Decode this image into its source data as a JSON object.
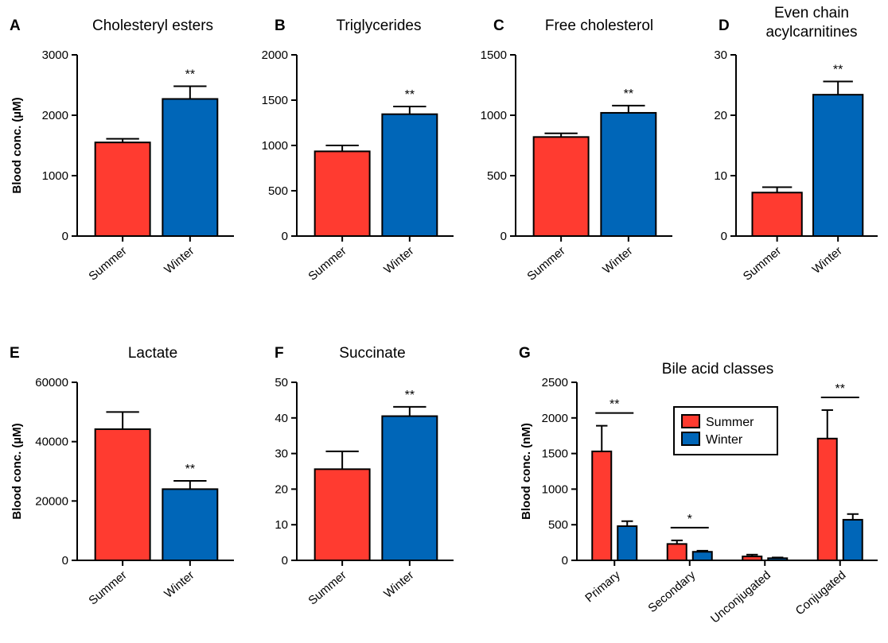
{
  "colors": {
    "summer": "#FF3B30",
    "winter": "#0066B8",
    "axis": "#000000"
  },
  "legend": {
    "items": [
      "Summer",
      "Winter"
    ],
    "placement": "top-center"
  },
  "chart_data": [
    {
      "type": "bar",
      "letter": "A",
      "title": "Cholesteryl esters",
      "ylabel": "Blood conc. (µM)",
      "categories": [
        "Summer",
        "Winter"
      ],
      "values": [
        1550,
        2270
      ],
      "errors": [
        60,
        210
      ],
      "ylim": [
        0,
        3000
      ],
      "yticks": [
        0,
        1000,
        2000,
        3000
      ],
      "ytick_labels": [
        "0",
        "1000",
        "2000",
        "3000"
      ],
      "significance": "**",
      "grid": false
    },
    {
      "type": "bar",
      "letter": "B",
      "title": "Triglycerides",
      "ylabel": "",
      "categories": [
        "Summer",
        "Winter"
      ],
      "values": [
        935,
        1345
      ],
      "errors": [
        65,
        85
      ],
      "ylim": [
        0,
        2000
      ],
      "yticks": [
        0,
        500,
        1000,
        1500,
        2000
      ],
      "ytick_labels": [
        "0",
        "500",
        "1000",
        "1500",
        "2000"
      ],
      "significance": "**",
      "grid": false
    },
    {
      "type": "bar",
      "letter": "C",
      "title": "Free cholesterol",
      "ylabel": "",
      "categories": [
        "Summer",
        "Winter"
      ],
      "values": [
        820,
        1020
      ],
      "errors": [
        30,
        60
      ],
      "ylim": [
        0,
        1500
      ],
      "yticks": [
        0,
        500,
        1000,
        1500
      ],
      "ytick_labels": [
        "0",
        "500",
        "1000",
        "1500"
      ],
      "significance": "**",
      "grid": false
    },
    {
      "type": "bar",
      "letter": "D",
      "title": "Even chain\nacylcarnitines",
      "ylabel": "",
      "categories": [
        "Summer",
        "Winter"
      ],
      "values": [
        7.2,
        23.4
      ],
      "errors": [
        0.9,
        2.2
      ],
      "ylim": [
        0,
        30
      ],
      "yticks": [
        0,
        10,
        20,
        30
      ],
      "ytick_labels": [
        "0",
        "10",
        "20",
        "30"
      ],
      "significance": "**",
      "grid": false
    },
    {
      "type": "bar",
      "letter": "E",
      "title": "Lactate",
      "ylabel": "Blood conc. (µM)",
      "categories": [
        "Summer",
        "Winter"
      ],
      "values": [
        44200,
        24000
      ],
      "errors": [
        5800,
        2800
      ],
      "ylim": [
        0,
        60000
      ],
      "yticks": [
        0,
        20000,
        40000,
        60000
      ],
      "ytick_labels": [
        "0",
        "20000",
        "40000",
        "60000"
      ],
      "significance": "**",
      "grid": false
    },
    {
      "type": "bar",
      "letter": "F",
      "title": "Succinate",
      "ylabel": "",
      "categories": [
        "Summer",
        "Winter"
      ],
      "values": [
        25.6,
        40.5
      ],
      "errors": [
        5.0,
        2.6
      ],
      "ylim": [
        0,
        50
      ],
      "yticks": [
        0,
        10,
        20,
        30,
        40,
        50
      ],
      "ytick_labels": [
        "0",
        "10",
        "20",
        "30",
        "40",
        "50"
      ],
      "significance": "**",
      "grid": false
    },
    {
      "type": "bar",
      "letter": "G",
      "title": "Bile acid classes",
      "ylabel": "Blood conc. (nM)",
      "categories": [
        "Primary",
        "Secondary",
        "Unconjugated",
        "Conjugated"
      ],
      "series": [
        {
          "name": "Summer",
          "values": [
            1530,
            230,
            55,
            1710
          ],
          "errors": [
            360,
            50,
            25,
            400
          ]
        },
        {
          "name": "Winter",
          "values": [
            480,
            120,
            30,
            570
          ],
          "errors": [
            70,
            15,
            10,
            80
          ]
        }
      ],
      "ylim": [
        0,
        2500
      ],
      "yticks": [
        0,
        500,
        1000,
        1500,
        2000,
        2500
      ],
      "ytick_labels": [
        "0",
        "500",
        "1000",
        "1500",
        "2000",
        "2500"
      ],
      "significance": [
        "**",
        "*",
        "",
        "**"
      ],
      "grid": false
    }
  ]
}
